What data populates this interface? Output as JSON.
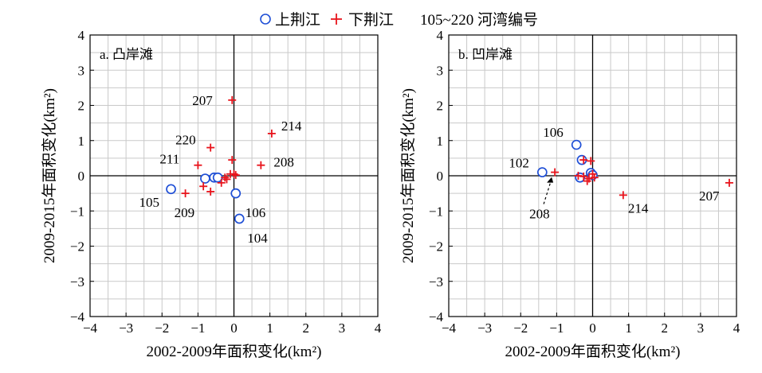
{
  "legend": {
    "items": [
      {
        "label": "上荆江",
        "marker": "circle",
        "color": "#1f4fd6"
      },
      {
        "label": "下荆江",
        "marker": "plus",
        "color": "#e8141c"
      }
    ],
    "note": "105~220 河湾编号"
  },
  "chart_data": [
    {
      "type": "scatter",
      "panel_label": "a. 凸岸滩",
      "xlabel": "2002-2009年面积变化(km²)",
      "ylabel": "2009-2015年面积变化(km²)",
      "xlim": [
        -4,
        4
      ],
      "ylim": [
        -4,
        4
      ],
      "xticks": [
        -4,
        -3,
        -2,
        -1,
        0,
        1,
        2,
        3,
        4
      ],
      "yticks": [
        -4,
        -3,
        -2,
        -1,
        0,
        1,
        2,
        3,
        4
      ],
      "grid": true,
      "series": [
        {
          "name": "上荆江",
          "marker": "circle",
          "points": [
            {
              "x": -1.75,
              "y": -0.38,
              "label": "105"
            },
            {
              "x": -0.8,
              "y": -0.08,
              "label": ""
            },
            {
              "x": -0.55,
              "y": -0.05,
              "label": ""
            },
            {
              "x": -0.45,
              "y": -0.05,
              "label": ""
            },
            {
              "x": 0.05,
              "y": -0.5,
              "label": "106"
            },
            {
              "x": 0.15,
              "y": -1.22,
              "label": "104"
            }
          ]
        },
        {
          "name": "下荆江",
          "marker": "plus",
          "points": [
            {
              "x": -0.05,
              "y": 2.15,
              "label": "207"
            },
            {
              "x": 1.05,
              "y": 1.2,
              "label": "214"
            },
            {
              "x": -0.65,
              "y": 0.8,
              "label": "220"
            },
            {
              "x": -1.0,
              "y": 0.3,
              "label": "211"
            },
            {
              "x": 0.75,
              "y": 0.3,
              "label": "208"
            },
            {
              "x": -1.35,
              "y": -0.5,
              "label": "209"
            },
            {
              "x": -0.85,
              "y": -0.3,
              "label": ""
            },
            {
              "x": -0.65,
              "y": -0.45,
              "label": ""
            },
            {
              "x": -0.35,
              "y": -0.2,
              "label": ""
            },
            {
              "x": -0.25,
              "y": -0.05,
              "label": ""
            },
            {
              "x": -0.2,
              "y": -0.1,
              "label": ""
            },
            {
              "x": -0.1,
              "y": 0.05,
              "label": ""
            },
            {
              "x": -0.05,
              "y": 0.45,
              "label": ""
            },
            {
              "x": 0.0,
              "y": 0.05,
              "label": ""
            },
            {
              "x": 0.05,
              "y": 0.02,
              "label": ""
            }
          ]
        }
      ]
    },
    {
      "type": "scatter",
      "panel_label": "b. 凹岸滩",
      "xlabel": "2002-2009年面积变化(km²)",
      "ylabel": "2009-2015年面积变化(km²)",
      "xlim": [
        -4,
        4
      ],
      "ylim": [
        -4,
        4
      ],
      "xticks": [
        -4,
        -3,
        -2,
        -1,
        0,
        1,
        2,
        3,
        4
      ],
      "yticks": [
        -4,
        -3,
        -2,
        -1,
        0,
        1,
        2,
        3,
        4
      ],
      "grid": true,
      "series": [
        {
          "name": "上荆江",
          "marker": "circle",
          "points": [
            {
              "x": -0.45,
              "y": 0.88,
              "label": "106"
            },
            {
              "x": -1.4,
              "y": 0.1,
              "label": "102"
            },
            {
              "x": -0.3,
              "y": 0.45,
              "label": ""
            },
            {
              "x": -0.35,
              "y": -0.05,
              "label": ""
            },
            {
              "x": -0.05,
              "y": 0.08,
              "label": ""
            },
            {
              "x": 0.0,
              "y": 0.02,
              "label": ""
            }
          ]
        },
        {
          "name": "下荆江",
          "marker": "plus",
          "points": [
            {
              "x": 3.8,
              "y": -0.2,
              "label": "207"
            },
            {
              "x": 0.85,
              "y": -0.55,
              "label": "214"
            },
            {
              "x": -1.05,
              "y": 0.1,
              "label": "208"
            },
            {
              "x": -0.25,
              "y": 0.45,
              "label": ""
            },
            {
              "x": -0.05,
              "y": 0.42,
              "label": ""
            },
            {
              "x": -0.15,
              "y": -0.15,
              "label": ""
            },
            {
              "x": -0.1,
              "y": -0.08,
              "label": ""
            },
            {
              "x": -0.25,
              "y": -0.02,
              "label": ""
            },
            {
              "x": -0.4,
              "y": 0.0,
              "label": ""
            },
            {
              "x": 0.0,
              "y": 0.05,
              "label": ""
            },
            {
              "x": 0.05,
              "y": -0.05,
              "label": ""
            }
          ]
        }
      ]
    }
  ]
}
